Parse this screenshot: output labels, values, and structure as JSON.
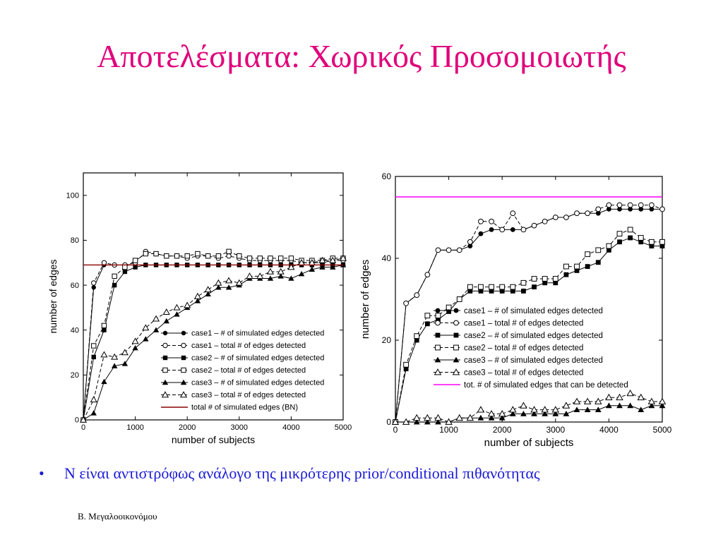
{
  "slide": {
    "title": "Αποτελέσματα: Χωρικός Προσομοιωτής",
    "bullet": "Ν είναι αντιστρόφως ανάλογο της μικρότερης prior/conditional πιθανότητας",
    "bullet_marker": "•",
    "footer": "Β. Μεγαλοοικονόμου",
    "title_color": "#e0007a",
    "bullet_color": "#1a1ad9"
  },
  "chart_data": [
    {
      "type": "line",
      "xlabel": "number of subjects",
      "ylabel": "number of edges",
      "xlim": [
        0,
        5000
      ],
      "ylim": [
        0,
        110
      ],
      "xticks": [
        0,
        1000,
        2000,
        3000,
        4000,
        5000
      ],
      "yticks": [
        0,
        20,
        40,
        60,
        80,
        100
      ],
      "legend_position": "bottom-right",
      "x": [
        0,
        200,
        400,
        600,
        800,
        1000,
        1200,
        1400,
        1600,
        1800,
        2000,
        2200,
        2400,
        2600,
        2800,
        3000,
        3200,
        3400,
        3600,
        3800,
        4000,
        4200,
        4400,
        4600,
        4800,
        5000
      ],
      "series": [
        {
          "name": "case1 – # of simulated edges detected",
          "marker": "filled-circle",
          "dash": "solid",
          "values": [
            0,
            59,
            69,
            69,
            69,
            69,
            69,
            69,
            69,
            69,
            69,
            69,
            69,
            69,
            69,
            69,
            69,
            69,
            69,
            69,
            69,
            69,
            69,
            69,
            69,
            69
          ]
        },
        {
          "name": "case1 – total # of edges detected",
          "marker": "open-circle",
          "dash": "dashed",
          "values": [
            0,
            61,
            70,
            69,
            69,
            70,
            75,
            74,
            73,
            73,
            72,
            73,
            73,
            72,
            73,
            72,
            71,
            71,
            71,
            71,
            71,
            70,
            70,
            70,
            71,
            71
          ]
        },
        {
          "name": "case2 – # of simulated edges detected",
          "marker": "filled-square",
          "dash": "solid",
          "values": [
            0,
            28,
            40,
            60,
            66,
            68,
            69,
            69,
            69,
            69,
            69,
            69,
            69,
            69,
            69,
            69,
            69,
            69,
            69,
            69,
            69,
            69,
            69,
            69,
            69,
            69
          ]
        },
        {
          "name": "case2 – total # of edges detected",
          "marker": "open-square",
          "dash": "dashed",
          "values": [
            0,
            33,
            42,
            64,
            68,
            71,
            74,
            74,
            73,
            73,
            73,
            74,
            73,
            73,
            75,
            73,
            72,
            72,
            72,
            72,
            72,
            71,
            71,
            71,
            72,
            72
          ]
        },
        {
          "name": "case3 – # of simulated edges detected",
          "marker": "filled-triangle",
          "dash": "solid",
          "values": [
            0,
            3,
            17,
            24,
            25,
            32,
            36,
            40,
            44,
            47,
            50,
            53,
            56,
            59,
            59,
            60,
            63,
            63,
            63,
            64,
            63,
            65,
            67,
            68,
            68,
            69
          ]
        },
        {
          "name": "case3 – total # of edges detected",
          "marker": "open-triangle",
          "dash": "dashed",
          "values": [
            0,
            9,
            29,
            28,
            30,
            35,
            41,
            45,
            48,
            50,
            51,
            55,
            58,
            61,
            62,
            61,
            64,
            64,
            66,
            66,
            68,
            70,
            70,
            71,
            71,
            72
          ]
        },
        {
          "name": "total # of simulated edges (BN)",
          "marker": "none",
          "dash": "solid",
          "color": "#8b0000",
          "constant": 69
        }
      ]
    },
    {
      "type": "line",
      "xlabel": "number of subjects",
      "ylabel": "number of edges",
      "xlim": [
        0,
        5000
      ],
      "ylim": [
        0,
        60
      ],
      "xticks": [
        0,
        1000,
        2000,
        3000,
        4000,
        5000
      ],
      "yticks": [
        0,
        20,
        40,
        60
      ],
      "legend_position": "bottom-right",
      "x": [
        0,
        200,
        400,
        600,
        800,
        1000,
        1200,
        1400,
        1600,
        1800,
        2000,
        2200,
        2400,
        2600,
        2800,
        3000,
        3200,
        3400,
        3600,
        3800,
        4000,
        4200,
        4400,
        4600,
        4800,
        5000
      ],
      "series": [
        {
          "name": "case1 – # of simulated edges detected",
          "marker": "filled-circle",
          "dash": "solid",
          "values": [
            0,
            29,
            31,
            36,
            42,
            42,
            42,
            43,
            46,
            47,
            47,
            47,
            47,
            48,
            49,
            50,
            50,
            51,
            51,
            51,
            52,
            52,
            52,
            52,
            52,
            52
          ]
        },
        {
          "name": "case1 – total # of edges detected",
          "marker": "open-circle",
          "dash": "dashed",
          "values": [
            0,
            29,
            31,
            36,
            42,
            42,
            42,
            44,
            49,
            49,
            47,
            51,
            47,
            48,
            49,
            50,
            50,
            51,
            51,
            52,
            53,
            53,
            53,
            53,
            53,
            52
          ]
        },
        {
          "name": "case2 – # of simulated edges detected",
          "marker": "filled-square",
          "dash": "solid",
          "values": [
            0,
            13,
            20,
            24,
            25,
            27,
            30,
            32,
            32,
            32,
            32,
            32,
            32,
            33,
            34,
            34,
            36,
            37,
            38,
            39,
            42,
            44,
            45,
            44,
            43,
            43
          ]
        },
        {
          "name": "case2 – total # of edges detected",
          "marker": "open-square",
          "dash": "dashed",
          "values": [
            0,
            14,
            21,
            26,
            26,
            28,
            30,
            33,
            33,
            33,
            33,
            33,
            34,
            35,
            35,
            35,
            38,
            38,
            41,
            42,
            43,
            46,
            47,
            45,
            44,
            44
          ]
        },
        {
          "name": "case3 – # of simulated edges detected",
          "marker": "filled-triangle",
          "dash": "solid",
          "values": [
            0,
            0,
            0,
            0,
            0,
            0,
            1,
            1,
            1,
            1,
            1,
            2,
            2,
            2,
            2,
            2,
            2,
            3,
            3,
            3,
            4,
            4,
            4,
            3,
            4,
            4
          ]
        },
        {
          "name": "case3 – total # of edges detected",
          "marker": "open-triangle",
          "dash": "dashed",
          "values": [
            0,
            0,
            1,
            1,
            1,
            0,
            1,
            1,
            3,
            2,
            2,
            3,
            4,
            3,
            3,
            3,
            4,
            5,
            5,
            5,
            6,
            6,
            7,
            6,
            5,
            5
          ]
        },
        {
          "name": "tot. # of simulated edges that can be detected",
          "marker": "none",
          "dash": "solid",
          "color": "#ff00ff",
          "constant": 55
        }
      ]
    }
  ]
}
